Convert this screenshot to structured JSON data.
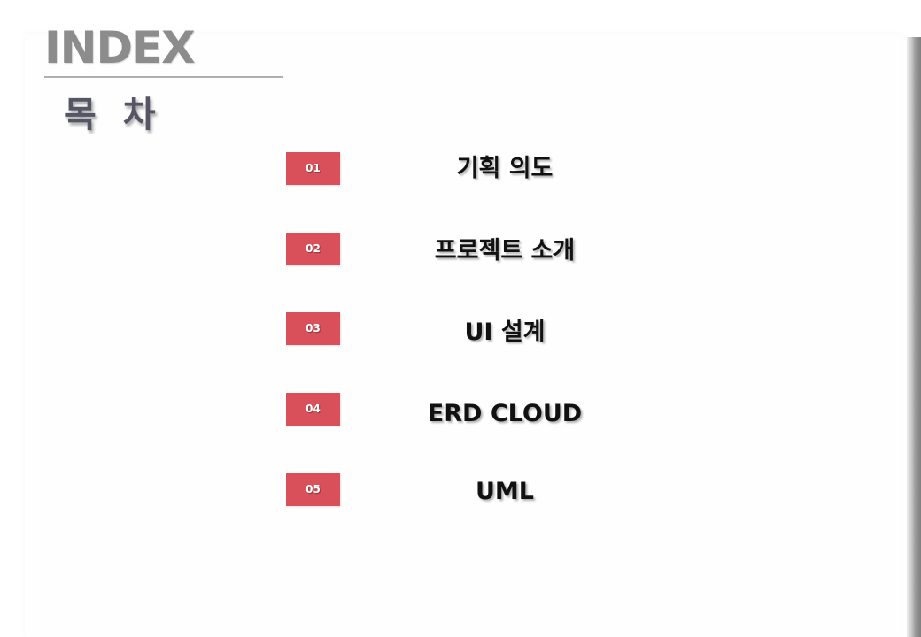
{
  "header": {
    "title": "INDEX",
    "subtitle": "목 차"
  },
  "toc": {
    "items": [
      {
        "number": "01",
        "label": "기획 의도"
      },
      {
        "number": "02",
        "label": "프로젝트 소개"
      },
      {
        "number": "03",
        "label": "UI 설계"
      },
      {
        "number": "04",
        "label": "ERD CLOUD"
      },
      {
        "number": "05",
        "label": "UML"
      }
    ]
  },
  "colors": {
    "number_badge": "#d9505a",
    "title_gray": "#8c8c8c",
    "subtitle_gray": "#555565",
    "label_text": "#111111"
  }
}
